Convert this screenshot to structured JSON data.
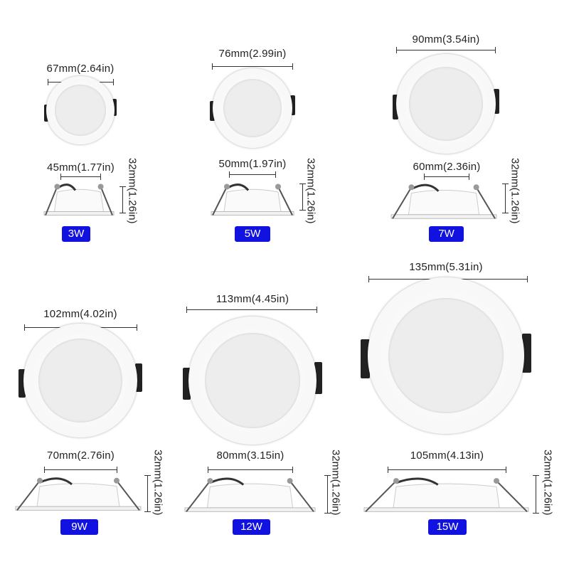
{
  "colors": {
    "badge": "#1212e0"
  },
  "products": [
    {
      "wattage": "3W",
      "diameter": "67mm(2.64in)",
      "cutout": "45mm(1.77in)",
      "height": "32mm(1.26in)"
    },
    {
      "wattage": "5W",
      "diameter": "76mm(2.99in)",
      "cutout": "50mm(1.97in)",
      "height": "32mm(1.26in)"
    },
    {
      "wattage": "7W",
      "diameter": "90mm(3.54in)",
      "cutout": "60mm(2.36in)",
      "height": "32mm(1.26in)"
    },
    {
      "wattage": "9W",
      "diameter": "102mm(4.02in)",
      "cutout": "70mm(2.76in)",
      "height": "32mm(1.26in)"
    },
    {
      "wattage": "12W",
      "diameter": "113mm(4.45in)",
      "cutout": "80mm(3.15in)",
      "height": "32mm(1.26in)"
    },
    {
      "wattage": "15W",
      "diameter": "135mm(5.31in)",
      "cutout": "105mm(4.13in)",
      "height": "32mm(1.26in)"
    }
  ]
}
